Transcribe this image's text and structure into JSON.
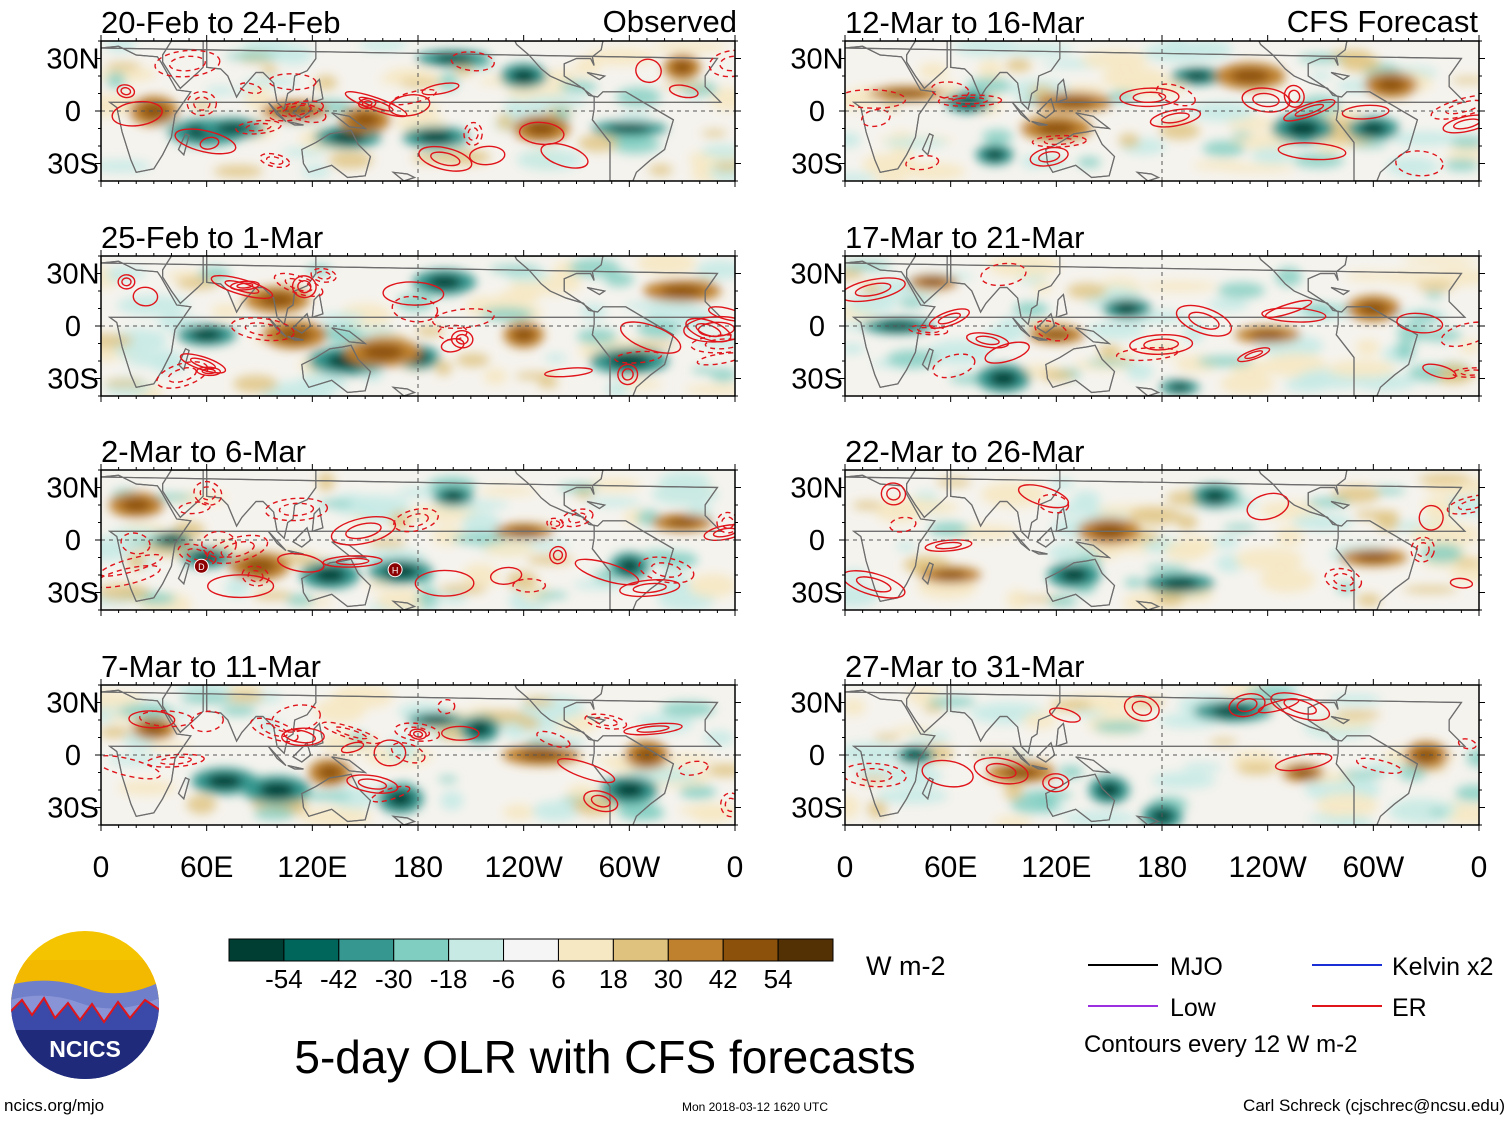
{
  "header": {
    "observed_label": "Observed",
    "forecast_label": "CFS Forecast"
  },
  "chart_data": [
    {
      "type": "heatmap",
      "title": "20-Feb to 24-Feb",
      "source": "Observed",
      "ylabels": [
        "30N",
        "0",
        "30S"
      ],
      "xlabels": [
        "0",
        "60E",
        "120E",
        "180",
        "120W",
        "60W",
        "0"
      ]
    },
    {
      "type": "heatmap",
      "title": "25-Feb to 1-Mar",
      "source": "Observed",
      "ylabels": [
        "30N",
        "0",
        "30S"
      ],
      "xlabels": [
        "0",
        "60E",
        "120E",
        "180",
        "120W",
        "60W",
        "0"
      ]
    },
    {
      "type": "heatmap",
      "title": "2-Mar to 6-Mar",
      "source": "Observed",
      "ylabels": [
        "30N",
        "0",
        "30S"
      ],
      "xlabels": [
        "0",
        "60E",
        "120E",
        "180",
        "120W",
        "60W",
        "0"
      ],
      "markers": [
        "D",
        "H"
      ]
    },
    {
      "type": "heatmap",
      "title": "7-Mar to 11-Mar",
      "source": "Observed",
      "ylabels": [
        "30N",
        "0",
        "30S"
      ],
      "xlabels": [
        "0",
        "60E",
        "120E",
        "180",
        "120W",
        "60W",
        "0"
      ]
    },
    {
      "type": "heatmap",
      "title": "12-Mar to 16-Mar",
      "source": "CFS Forecast",
      "ylabels": [
        "30N",
        "0",
        "30S"
      ],
      "xlabels": [
        "0",
        "60E",
        "120E",
        "180",
        "120W",
        "60W",
        "0"
      ]
    },
    {
      "type": "heatmap",
      "title": "17-Mar to 21-Mar",
      "source": "CFS Forecast",
      "ylabels": [
        "30N",
        "0",
        "30S"
      ],
      "xlabels": [
        "0",
        "60E",
        "120E",
        "180",
        "120W",
        "60W",
        "0"
      ]
    },
    {
      "type": "heatmap",
      "title": "22-Mar to 26-Mar",
      "source": "CFS Forecast",
      "ylabels": [
        "30N",
        "0",
        "30S"
      ],
      "xlabels": [
        "0",
        "60E",
        "120E",
        "180",
        "120W",
        "60W",
        "0"
      ]
    },
    {
      "type": "heatmap",
      "title": "27-Mar to 31-Mar",
      "source": "CFS Forecast",
      "ylabels": [
        "30N",
        "0",
        "30S"
      ],
      "xlabels": [
        "0",
        "60E",
        "120E",
        "180",
        "120W",
        "60W",
        "0"
      ]
    }
  ],
  "colorbar": {
    "labels": [
      "-54",
      "-42",
      "-30",
      "-18",
      "-6",
      "6",
      "18",
      "30",
      "42",
      "54"
    ],
    "colors": [
      "#003d33",
      "#00665c",
      "#35978f",
      "#80cdc1",
      "#c7eae5",
      "#f5f5f5",
      "#f6e8c3",
      "#dfc27d",
      "#bf812d",
      "#8c510a",
      "#543005"
    ],
    "unit": "W m-2"
  },
  "legend": {
    "items": [
      {
        "label": "MJO",
        "color": "#000000"
      },
      {
        "label": "Kelvin x2",
        "color": "#1a2fd6"
      },
      {
        "label": "Low",
        "color": "#9b30e0"
      },
      {
        "label": "ER",
        "color": "#e0151b"
      }
    ],
    "note": "Contours every 12 W m-2"
  },
  "logo": {
    "text": "NCICS"
  },
  "title": "5-day OLR with CFS forecasts",
  "footer": {
    "url": "ncics.org/mjo",
    "timestamp": "Mon 2018-03-12 1620 UTC",
    "author": "Carl Schreck (cjschrec@ncsu.edu)"
  }
}
